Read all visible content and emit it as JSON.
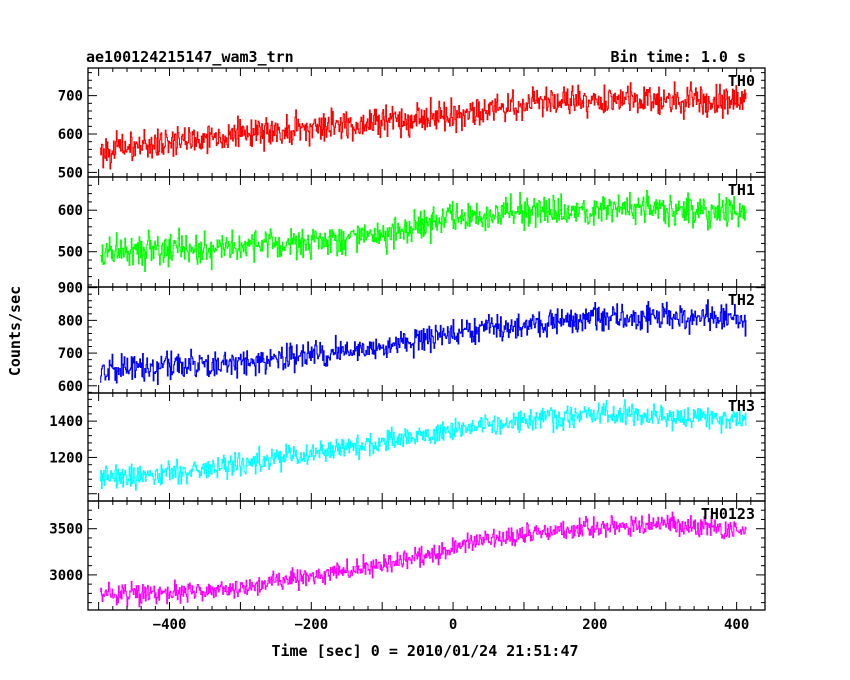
{
  "header": {
    "title": "ae100124215147_wam3_trn",
    "bin_time": "Bin time: 1.0 s"
  },
  "axes": {
    "ylabel": "Counts/sec",
    "xlabel": "Time [sec] 0 = 2010/01/24 21:51:47"
  },
  "chart_data": {
    "type": "line",
    "title": "ae100124215147_wam3_trn",
    "xlabel": "Time [sec] 0 = 2010/01/24 21:51:47",
    "ylabel": "Counts/sec",
    "xlim": [
      -515,
      440
    ],
    "x_ticks": [
      -400,
      -200,
      0,
      200,
      400
    ],
    "bin_time_s": 1.0,
    "x_start": -498,
    "x_end": 413,
    "series": [
      {
        "name": "TH0",
        "color": "#ff0000",
        "ylim": [
          488,
          772
        ],
        "y_ticks": [
          500,
          600,
          700
        ],
        "x": [
          -500,
          -400,
          -300,
          -200,
          -100,
          0,
          100,
          200,
          300,
          413
        ],
        "y": [
          555,
          580,
          600,
          615,
          635,
          650,
          680,
          690,
          690,
          685
        ],
        "noise": 28
      },
      {
        "name": "TH1",
        "color": "#00ff00",
        "ylim": [
          415,
          680
        ],
        "y_ticks": [
          500,
          600
        ],
        "x": [
          -500,
          -400,
          -300,
          -200,
          -100,
          0,
          100,
          200,
          300,
          413
        ],
        "y": [
          500,
          505,
          515,
          525,
          545,
          585,
          595,
          600,
          600,
          595
        ],
        "noise": 27
      },
      {
        "name": "TH2",
        "color": "#0000ff",
        "ylim": [
          578,
          902
        ],
        "y_ticks": [
          600,
          700,
          800,
          900
        ],
        "x": [
          -500,
          -400,
          -300,
          -200,
          -100,
          0,
          100,
          200,
          300,
          413
        ],
        "y": [
          640,
          660,
          670,
          695,
          715,
          760,
          785,
          810,
          810,
          805
        ],
        "noise": 30
      },
      {
        "name": "TH3",
        "color": "#00ffff",
        "ylim": [
          960,
          1555
        ],
        "y_ticks": [
          1200,
          1400
        ],
        "x": [
          -500,
          -400,
          -300,
          -200,
          -100,
          0,
          100,
          200,
          300,
          413
        ],
        "y": [
          1080,
          1110,
          1160,
          1220,
          1290,
          1340,
          1410,
          1440,
          1430,
          1410
        ],
        "noise": 45
      },
      {
        "name": "TH0123",
        "color": "#ff00ff",
        "ylim": [
          2620,
          3800
        ],
        "y_ticks": [
          3000,
          3500
        ],
        "x": [
          -500,
          -400,
          -300,
          -200,
          -100,
          0,
          100,
          200,
          300,
          413
        ],
        "y": [
          2770,
          2810,
          2870,
          2990,
          3110,
          3290,
          3450,
          3520,
          3550,
          3480
        ],
        "noise": 80
      }
    ]
  }
}
